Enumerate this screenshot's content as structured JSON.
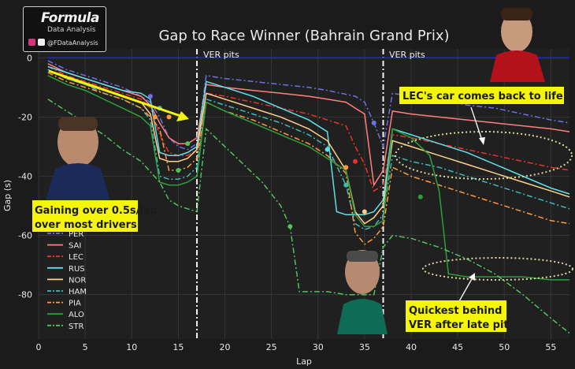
{
  "branding": {
    "name": "Formula",
    "subtitle": "Data Analysis",
    "handle": "@FDataAnalysis"
  },
  "annotations": {
    "ver_pits_1": "VER pits",
    "ver_pits_2": "VER pits",
    "gaining_line1": "Gaining over 0.5s/lap",
    "gaining_line2": "over most drivers",
    "lec_back_line1": "LEC's car comes back to life",
    "quickest_line1": "Quickest behind",
    "quickest_line2": "VER after late pit"
  },
  "colors": {
    "background": "#1b1b1b",
    "grid": "#3a3a3a",
    "ver_line": "#1e22e8",
    "callout_bg": "#f5f50a",
    "callout_text": "#1a1a1a",
    "arrow": "#f5f50a",
    "ellipse": "#ded79a"
  },
  "chart_data": {
    "type": "line",
    "title": "Gap to Race Winner (Bahrain Grand Prix)",
    "xlabel": "Lap",
    "ylabel": "Gap (s)",
    "xlim": [
      0,
      57
    ],
    "ylim": [
      -95,
      3
    ],
    "x_ticks": [
      0,
      5,
      10,
      15,
      20,
      25,
      30,
      35,
      40,
      45,
      50,
      55
    ],
    "y_ticks": [
      0,
      -20,
      -40,
      -60,
      -80
    ],
    "pit_laps": [
      17,
      37
    ],
    "grid": true,
    "legend_position": "lower-left",
    "series": [
      {
        "name": "VER",
        "color": "#1e22e8",
        "dash": "solid",
        "x": [
          1,
          57
        ],
        "y": [
          0,
          0
        ]
      },
      {
        "name": "PER",
        "color": "#6f6fe8",
        "dash": "dashdot",
        "x": [
          1,
          3,
          5,
          7,
          9,
          11,
          12,
          13,
          14,
          15,
          16,
          17,
          18,
          20,
          23,
          26,
          29,
          31,
          34,
          35,
          36,
          37,
          38,
          40,
          43,
          46,
          49,
          52,
          55,
          57
        ],
        "y": [
          -1,
          -4,
          -6,
          -8,
          -10,
          -13,
          -15,
          -20,
          -27,
          -30,
          -31,
          -29,
          -6,
          -7,
          -8,
          -9,
          -10,
          -11,
          -13,
          -15,
          -22,
          -30,
          -12,
          -13,
          -14,
          -16,
          -17,
          -19,
          -21,
          -22
        ]
      },
      {
        "name": "SAI",
        "color": "#ff7f7f",
        "dash": "solid",
        "x": [
          1,
          3,
          5,
          7,
          9,
          11,
          12,
          13,
          14,
          15,
          16,
          17,
          18,
          20,
          23,
          26,
          29,
          31,
          33,
          34,
          35,
          36,
          37,
          38,
          40,
          43,
          46,
          49,
          52,
          55,
          57
        ],
        "y": [
          -2,
          -5,
          -7,
          -9,
          -11,
          -13,
          -16,
          -22,
          -27,
          -29,
          -29,
          -27,
          -9,
          -10,
          -11,
          -12,
          -13,
          -14,
          -15,
          -17,
          -19,
          -43,
          -38,
          -18,
          -19,
          -20,
          -21,
          -22,
          -23,
          -24,
          -25
        ]
      },
      {
        "name": "LEC",
        "color": "#e8322a",
        "dash": "dashdot",
        "x": [
          1,
          3,
          5,
          7,
          9,
          11,
          12,
          13,
          14,
          15,
          16,
          17,
          18,
          20,
          23,
          26,
          29,
          31,
          33,
          34,
          35,
          36,
          37,
          38,
          40,
          43,
          46,
          49,
          52,
          55,
          57
        ],
        "y": [
          -3,
          -6,
          -8,
          -10,
          -12,
          -14,
          -17,
          -26,
          -32,
          -33,
          -33,
          -31,
          -12,
          -13,
          -15,
          -17,
          -19,
          -21,
          -23,
          -30,
          -36,
          -45,
          -43,
          -26,
          -27,
          -29,
          -31,
          -33,
          -35,
          -37,
          -38
        ]
      },
      {
        "name": "RUS",
        "color": "#5fe0e8",
        "dash": "solid",
        "x": [
          1,
          3,
          5,
          7,
          9,
          11,
          12,
          13,
          14,
          15,
          16,
          17,
          18,
          20,
          23,
          26,
          29,
          31,
          32,
          33,
          34,
          35,
          36,
          37,
          38,
          40,
          43,
          46,
          49,
          52,
          55,
          57
        ],
        "y": [
          -3,
          -5,
          -7,
          -9,
          -11,
          -12,
          -14,
          -32,
          -33,
          -33,
          -32,
          -30,
          -8,
          -10,
          -13,
          -17,
          -21,
          -25,
          -52,
          -53,
          -53,
          -53,
          -52,
          -48,
          -24,
          -26,
          -29,
          -32,
          -36,
          -40,
          -44,
          -46
        ]
      },
      {
        "name": "NOR",
        "color": "#ffd08a",
        "dash": "solid",
        "x": [
          1,
          3,
          5,
          7,
          9,
          11,
          12,
          13,
          14,
          15,
          16,
          17,
          18,
          20,
          23,
          26,
          29,
          31,
          33,
          34,
          35,
          36,
          37,
          38,
          40,
          43,
          46,
          49,
          52,
          55,
          57
        ],
        "y": [
          -4,
          -7,
          -9,
          -11,
          -13,
          -15,
          -19,
          -34,
          -35,
          -35,
          -34,
          -31,
          -12,
          -14,
          -17,
          -20,
          -24,
          -28,
          -38,
          -52,
          -56,
          -54,
          -50,
          -28,
          -30,
          -33,
          -36,
          -39,
          -42,
          -45,
          -47
        ]
      },
      {
        "name": "HAM",
        "color": "#41b8b8",
        "dash": "dashdot",
        "x": [
          1,
          3,
          5,
          7,
          9,
          11,
          12,
          13,
          14,
          15,
          16,
          17,
          18,
          20,
          23,
          26,
          29,
          31,
          33,
          34,
          35,
          36,
          37,
          38,
          40,
          43,
          46,
          49,
          52,
          55,
          57
        ],
        "y": [
          -4,
          -7,
          -9,
          -12,
          -14,
          -17,
          -21,
          -40,
          -41,
          -41,
          -40,
          -37,
          -14,
          -16,
          -19,
          -22,
          -26,
          -30,
          -43,
          -56,
          -58,
          -57,
          -53,
          -33,
          -35,
          -37,
          -40,
          -43,
          -46,
          -49,
          -51
        ]
      },
      {
        "name": "PIA",
        "color": "#ff9a3c",
        "dash": "dashdot",
        "x": [
          1,
          3,
          5,
          7,
          9,
          11,
          12,
          13,
          14,
          15,
          16,
          17,
          18,
          20,
          23,
          26,
          29,
          31,
          33,
          34,
          35,
          36,
          37,
          38,
          40,
          43,
          46,
          49,
          52,
          55,
          57
        ],
        "y": [
          -5,
          -8,
          -10,
          -12,
          -14,
          -17,
          -20,
          -24,
          -38,
          -38,
          -37,
          -34,
          -15,
          -18,
          -21,
          -25,
          -29,
          -33,
          -39,
          -59,
          -63,
          -61,
          -57,
          -37,
          -40,
          -43,
          -46,
          -49,
          -52,
          -55,
          -56
        ]
      },
      {
        "name": "ALO",
        "color": "#2e9e3a",
        "dash": "solid",
        "x": [
          1,
          3,
          5,
          7,
          9,
          11,
          12,
          13,
          14,
          15,
          16,
          17,
          18,
          20,
          23,
          26,
          29,
          31,
          33,
          34,
          35,
          36,
          37,
          38,
          40,
          42,
          43,
          44,
          46,
          49,
          52,
          55,
          57
        ],
        "y": [
          -6,
          -9,
          -11,
          -14,
          -17,
          -20,
          -23,
          -42,
          -43,
          -43,
          -42,
          -40,
          -15,
          -18,
          -22,
          -26,
          -30,
          -34,
          -38,
          -53,
          -57,
          -57,
          -55,
          -24,
          -27,
          -33,
          -45,
          -73,
          -74,
          -74,
          -74,
          -75,
          -75
        ]
      },
      {
        "name": "STR",
        "color": "#4fc25c",
        "dash": "dashdot",
        "x": [
          1,
          3,
          5,
          7,
          9,
          11,
          13,
          14,
          15,
          16,
          17,
          18,
          20,
          22,
          24,
          26,
          27,
          28,
          29,
          31,
          33,
          34,
          35,
          36,
          37,
          38,
          40,
          43,
          46,
          49,
          52,
          55,
          57
        ],
        "y": [
          -14,
          -18,
          -22,
          -26,
          -31,
          -35,
          -42,
          -48,
          -50,
          -51,
          -52,
          -24,
          -30,
          -36,
          -42,
          -50,
          -57,
          -79,
          -79,
          -79,
          -80,
          -80,
          -80,
          -80,
          -64,
          -60,
          -61,
          -64,
          -68,
          -73,
          -80,
          -88,
          -93
        ]
      }
    ],
    "legend_entries": [
      "PER",
      "SAI",
      "LEC",
      "RUS",
      "NOR",
      "HAM",
      "PIA",
      "ALO",
      "STR"
    ]
  }
}
